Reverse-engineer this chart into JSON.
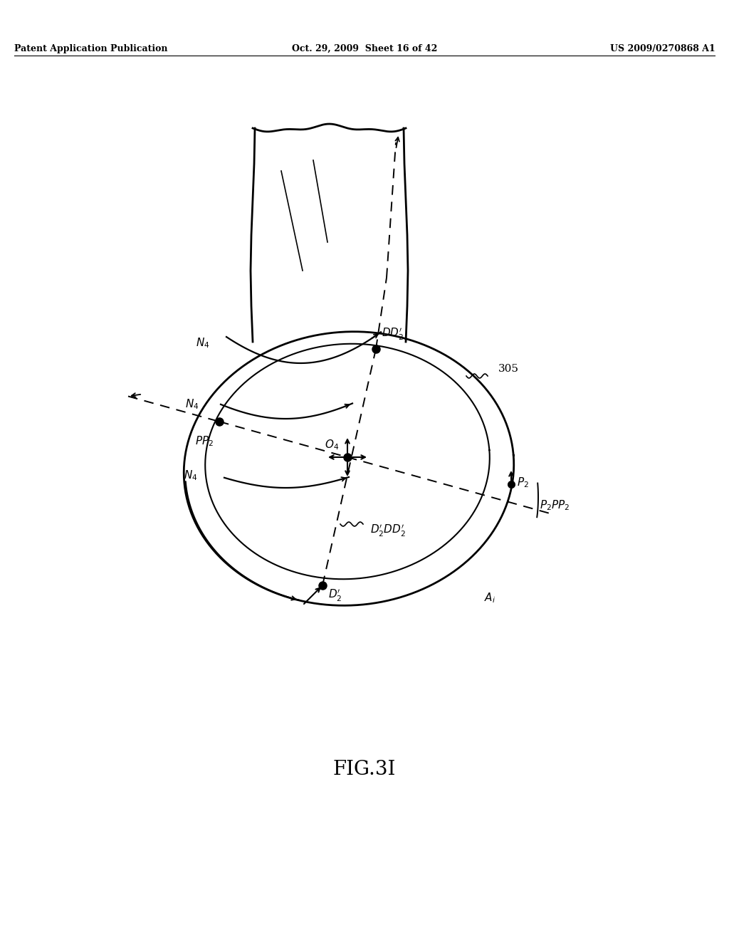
{
  "background_color": "#ffffff",
  "header_left": "Patent Application Publication",
  "header_center": "Oct. 29, 2009  Sheet 16 of 42",
  "header_right": "US 2009/0270868 A1",
  "figure_label": "FIG.3I",
  "fig_label_fontsize": 20
}
